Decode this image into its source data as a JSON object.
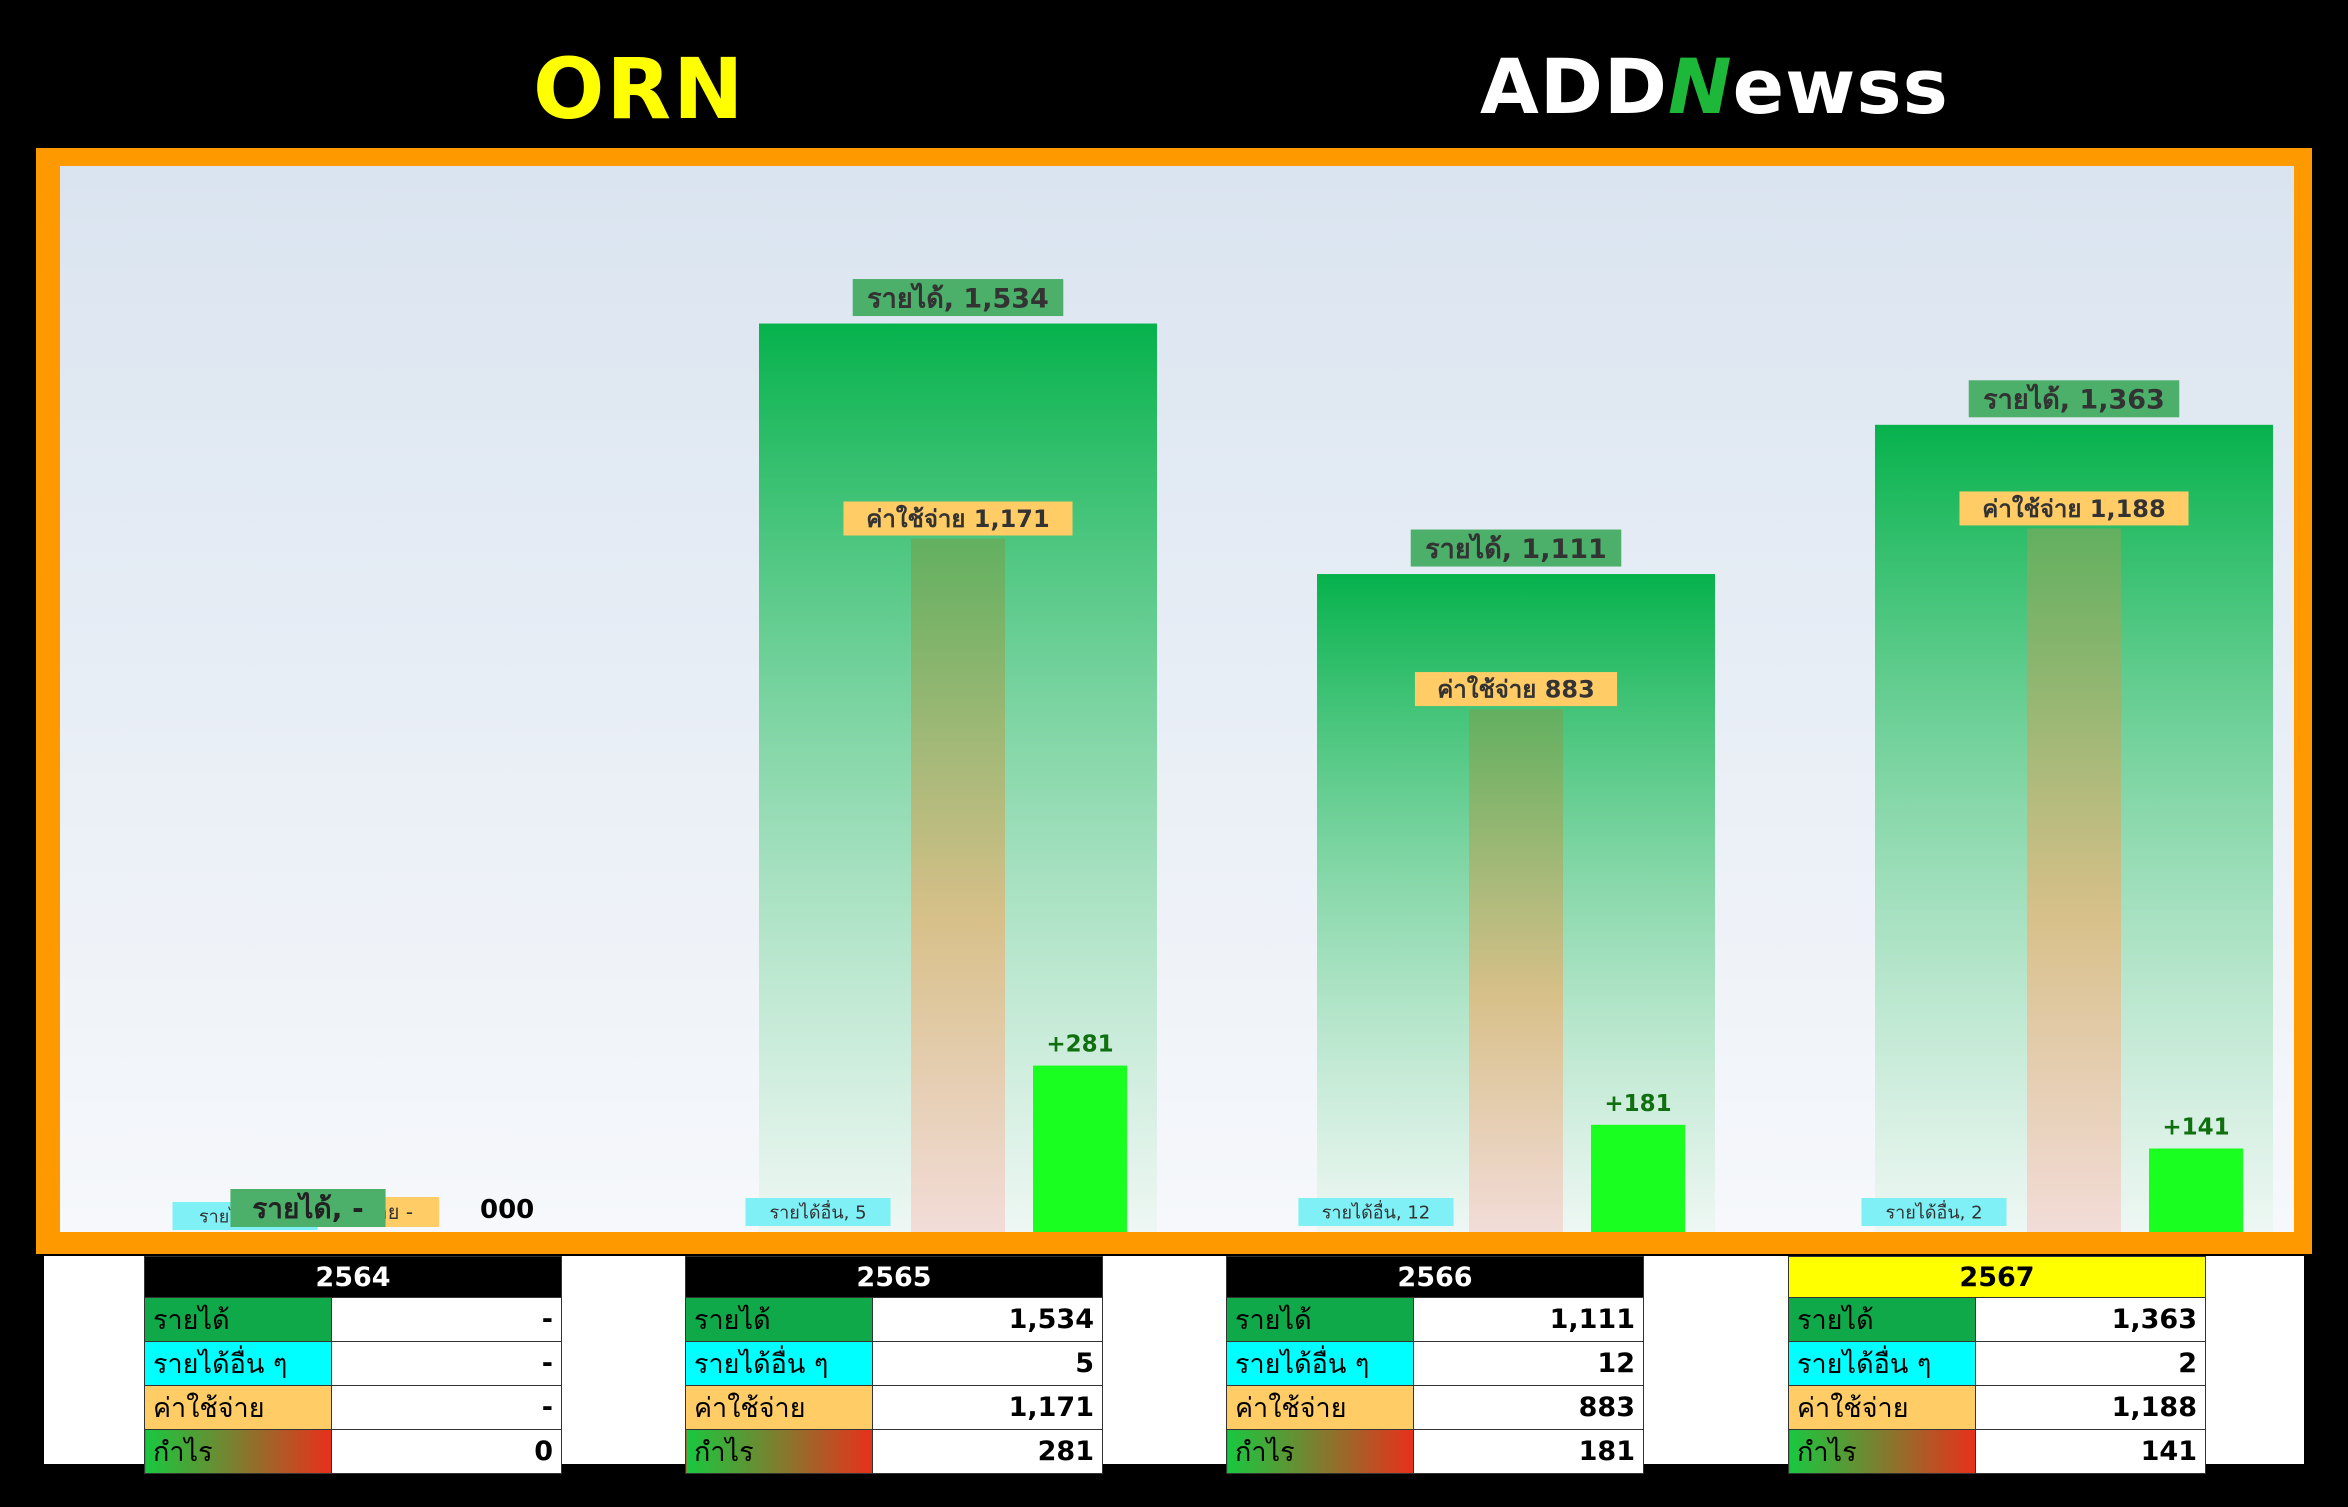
{
  "header": {
    "ticker": "ORN",
    "logo_pre": "ADD",
    "logo_mid": "N",
    "logo_post": "ewss"
  },
  "colors": {
    "revenue": "#0db04b",
    "expense": "#f0b080",
    "profit": "#19ff20",
    "other": "#00e5f0",
    "frame": "#ff9900",
    "highlight_year": "#ffff00"
  },
  "labels": {
    "revenue": "รายได้",
    "other_income": "รายได้อื่น ๆ",
    "expense": "ค่าใช้จ่าย",
    "profit": "กำไร"
  },
  "chart_data": {
    "type": "bar",
    "categories": [
      "2564",
      "2565",
      "2566",
      "2567"
    ],
    "series": [
      {
        "name": "รายได้",
        "values": [
          0,
          1534,
          1111,
          1363
        ]
      },
      {
        "name": "รายได้อื่น ๆ",
        "values": [
          0,
          5,
          12,
          2
        ]
      },
      {
        "name": "ค่าใช้จ่าย",
        "values": [
          0,
          1171,
          883,
          1188
        ]
      },
      {
        "name": "กำไร",
        "values": [
          0,
          281,
          181,
          141
        ]
      }
    ],
    "data_labels": {
      "revenue": [
        "รายได้, -",
        "รายได้, 1,534",
        "รายได้, 1,111",
        "รายได้, 1,363"
      ],
      "other": [
        "รายได้อื่น, -",
        "รายได้อื่น, 5",
        "รายได้อื่น, 12",
        "รายได้อื่น, 2"
      ],
      "expense": [
        "ค่าใช้จ่าย -",
        "ค่าใช้จ่าย 1,171",
        "ค่าใช้จ่าย 883",
        "ค่าใช้จ่าย 1,188"
      ],
      "profit": [
        "000",
        "+281",
        "+181",
        "+141"
      ]
    },
    "ylim": [
      0,
      1800
    ]
  },
  "tables": [
    {
      "year": "2564",
      "current": false,
      "revenue": "-",
      "other": "-",
      "expense": "-",
      "profit": "0"
    },
    {
      "year": "2565",
      "current": false,
      "revenue": "1,534",
      "other": "5",
      "expense": "1,171",
      "profit": "281"
    },
    {
      "year": "2566",
      "current": false,
      "revenue": "1,111",
      "other": "12",
      "expense": "883",
      "profit": "181"
    },
    {
      "year": "2567",
      "current": true,
      "revenue": "1,363",
      "other": "2",
      "expense": "1,188",
      "profit": "141"
    }
  ]
}
